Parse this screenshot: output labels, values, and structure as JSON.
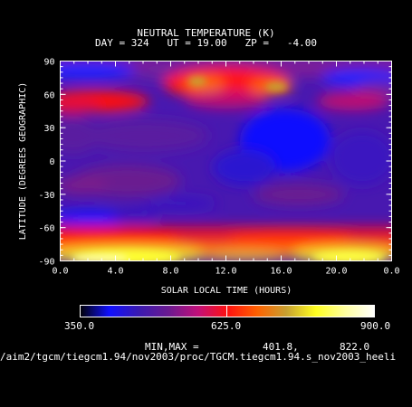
{
  "chart_data": {
    "type": "heatmap",
    "title": "NEUTRAL TEMPERATURE (K)",
    "subtitle": "DAY = 324   UT = 19.00   ZP =   -4.00",
    "xlabel": "SOLAR LOCAL TIME (HOURS)",
    "ylabel": "LATITUDE (DEGREES GEOGRAPHIC)",
    "xlim": [
      0,
      24
    ],
    "ylim": [
      -90,
      90
    ],
    "x_ticks": [
      "0.0",
      "4.0",
      "8.0",
      "12.0",
      "16.0",
      "20.0",
      "0.0"
    ],
    "y_ticks": [
      "90",
      "60",
      "30",
      "0",
      "-30",
      "-60",
      "-90"
    ],
    "colorbar": {
      "min": 350.0,
      "mid": 625.0,
      "max": 900.0,
      "min_label": "350.0",
      "mid_label": "625.0",
      "max_label": "900.0",
      "stops": [
        "#000000",
        "#1010ff",
        "#3a1ab0",
        "#6a1a90",
        "#c0107a",
        "#ff1010",
        "#ff6000",
        "#c8a030",
        "#ffff20",
        "#ffffa0",
        "#ffffff"
      ]
    },
    "minmax_label": "MIN,MAX =",
    "min_value": "401.8,",
    "max_value": "822.0",
    "grid": false
  },
  "footer": {
    "path": "/aim2/tgcm/tiegcm1.94/nov2003/proc/TGCM.tiegcm1.94.s_nov2003_heeli"
  }
}
